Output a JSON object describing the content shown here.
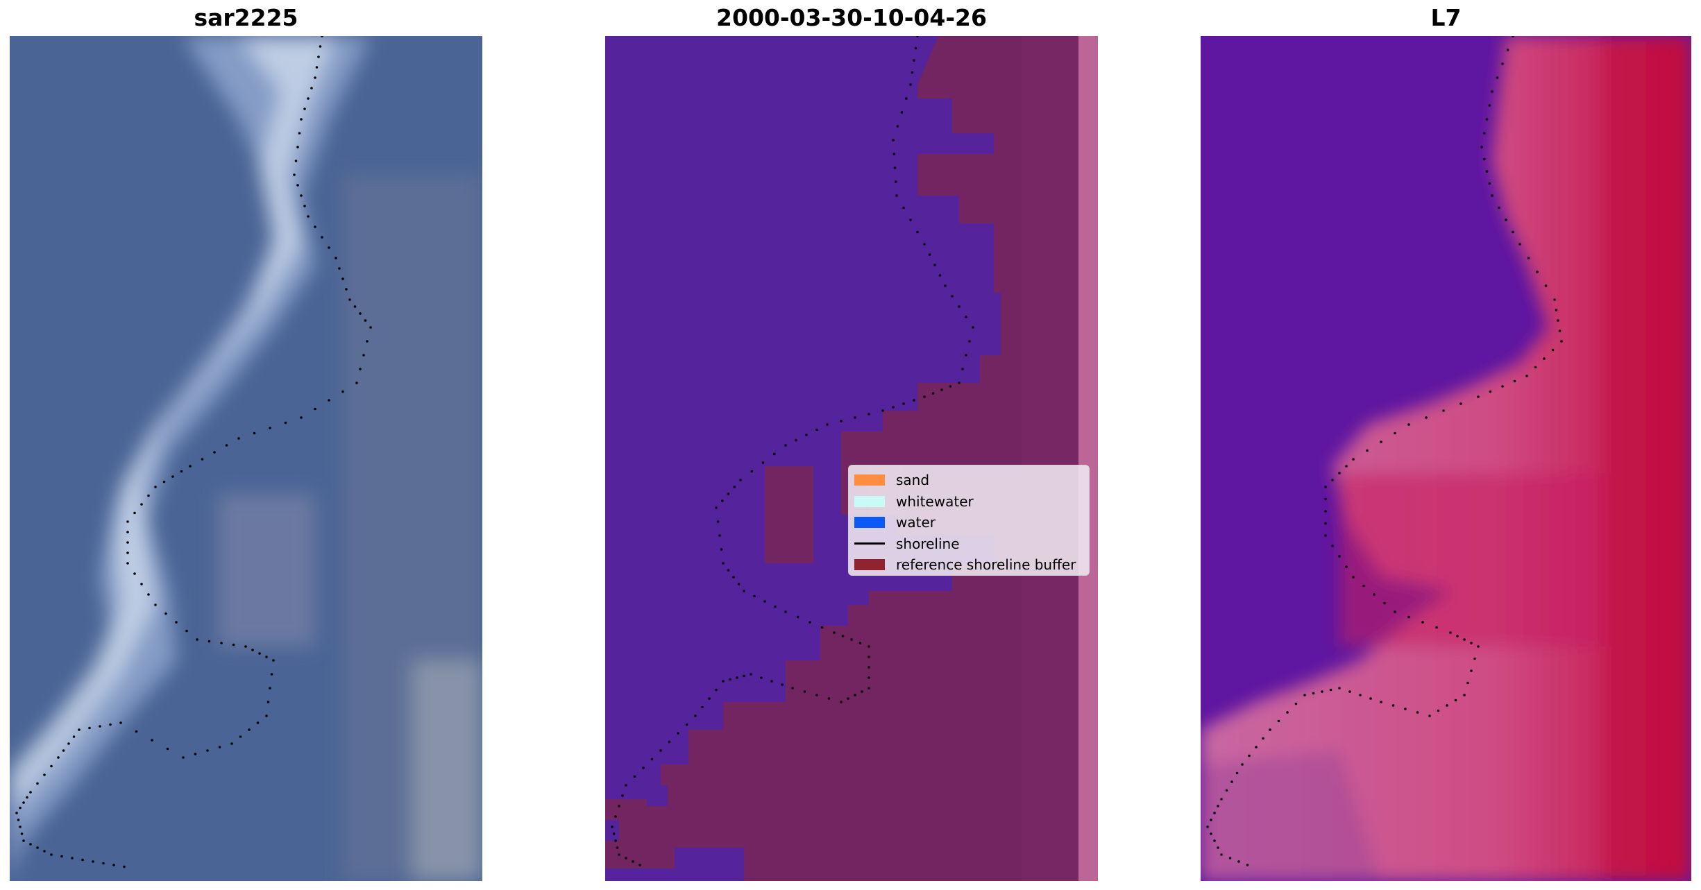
{
  "panels": [
    {
      "title": "sar2225",
      "image": "RGB satellite image of coastline"
    },
    {
      "title": "2000-03-30-10-04-26",
      "image": "classified image with reference shoreline buffer"
    },
    {
      "title": "L7",
      "image": "MNDWI index image"
    }
  ],
  "legend": {
    "items": [
      {
        "label": "sand",
        "color": "#ff8c3f",
        "kind": "patch"
      },
      {
        "label": "whitewater",
        "color": "#c8fbf8",
        "kind": "patch"
      },
      {
        "label": "water",
        "color": "#0b5af8",
        "kind": "patch"
      },
      {
        "label": "shoreline",
        "color": "#000000",
        "kind": "line"
      },
      {
        "label": "reference shoreline buffer",
        "color": "#8f2430",
        "kind": "patch"
      }
    ]
  },
  "colors": {
    "rgb_water": "#4a6495",
    "class_water": "#55239b",
    "class_buffer": "#722560",
    "class_edge": "#bc6597",
    "mndwi_low": "#5f16a0",
    "mndwi_high": "#c2093c"
  }
}
